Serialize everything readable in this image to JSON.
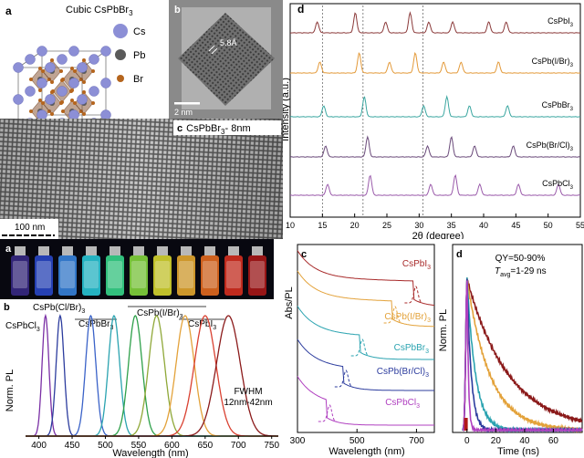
{
  "crystal": {
    "letter": "a",
    "title": "Cubic CsPbBr",
    "title_sub": "3",
    "legend": [
      {
        "label": "Cs",
        "color": "#8c8fd6"
      },
      {
        "label": "Pb",
        "color": "#5a5a5a"
      },
      {
        "label": "Br",
        "color": "#b5651d"
      }
    ]
  },
  "hrtem": {
    "letter": "b",
    "spacing": "5.8Å",
    "scale": "2 nm"
  },
  "tem": {
    "letter": "c",
    "title": "CsPbBr",
    "title_sub": "3",
    "title_tail": "- 8nm",
    "scale": "100 nm"
  },
  "photo": {
    "letter": "a"
  },
  "pl": {
    "letter": "b",
    "y_label": "Norm. PL",
    "x_label": "Wavelength (nm)",
    "fwhm_line1": "FWHM",
    "fwhm_line2": "12nm-42nm",
    "compositions": [
      {
        "label": "CsPbCl",
        "sub": "3"
      },
      {
        "label": "CsPb(Cl/Br)",
        "sub": "3"
      },
      {
        "label": "CsPbBr",
        "sub": "3"
      },
      {
        "label": "CsPb(I/Br)",
        "sub": "3"
      },
      {
        "label": "CsPbI",
        "sub": "3"
      }
    ],
    "x_ticks": [
      "400",
      "450",
      "500",
      "550",
      "600",
      "650",
      "700",
      "750"
    ],
    "chart_data": {
      "type": "line",
      "xlabel": "Wavelength (nm)",
      "ylabel": "Norm. PL",
      "xlim": [
        380,
        760
      ],
      "ylim": [
        0,
        1
      ],
      "series": [
        {
          "peak": 410,
          "fwhm": 12,
          "color": "#7a2fa5"
        },
        {
          "peak": 432,
          "fwhm": 14,
          "color": "#2c3c9e"
        },
        {
          "peak": 478,
          "fwhm": 18,
          "color": "#3a62c8"
        },
        {
          "peak": 513,
          "fwhm": 20,
          "color": "#2aa3b0"
        },
        {
          "peak": 545,
          "fwhm": 24,
          "color": "#2ea04a"
        },
        {
          "peak": 577,
          "fwhm": 28,
          "color": "#8fa838"
        },
        {
          "peak": 620,
          "fwhm": 32,
          "color": "#e3a23a"
        },
        {
          "peak": 650,
          "fwhm": 38,
          "color": "#d94030"
        },
        {
          "peak": 685,
          "fwhm": 42,
          "color": "#8b1a1a"
        }
      ]
    }
  },
  "xrd": {
    "letter": "d",
    "y_label": "Intensity (a.u.)",
    "x_label": "2θ (degree)",
    "x_ticks": [
      "10",
      "15",
      "20",
      "25",
      "30",
      "35",
      "40",
      "45",
      "50",
      "55"
    ],
    "chart_data": {
      "type": "line",
      "xlim": [
        10,
        55
      ],
      "series": [
        {
          "name": "CsPbI",
          "sub": "3",
          "color": "#8b3a3a",
          "peaks": [
            14.2,
            20.1,
            24.8,
            28.6,
            31.5,
            35.2,
            40.8,
            43.5
          ]
        },
        {
          "name": "CsPb(I/Br)",
          "sub": "3",
          "color": "#e39a3a",
          "peaks": [
            14.6,
            20.7,
            25.4,
            29.4,
            33.8,
            36.5,
            42.3
          ]
        },
        {
          "name": "CsPbBr",
          "sub": "3",
          "color": "#3aa6a0",
          "peaks": [
            15.2,
            21.5,
            30.7,
            34.3,
            37.8,
            43.7
          ]
        },
        {
          "name": "CsPb(Br/Cl)",
          "sub": "3",
          "color": "#6a4a7a",
          "peaks": [
            15.5,
            22.0,
            31.3,
            35.0,
            38.6,
            44.6
          ]
        },
        {
          "name": "CsPbCl",
          "sub": "3",
          "color": "#9a5aaa",
          "peaks": [
            15.8,
            22.4,
            31.8,
            35.6,
            39.4,
            45.4,
            51.6
          ]
        }
      ]
    }
  },
  "abs": {
    "letter": "c",
    "y_label": "Abs/PL",
    "x_label": "Wavelength (nm)",
    "x_ticks": [
      "300",
      "500",
      "700"
    ],
    "labels": [
      {
        "name": "CsPbI",
        "sub": "3",
        "color": "#a82a2a"
      },
      {
        "name": "CsPb(I/Br)",
        "sub": "3",
        "color": "#e3a23a"
      },
      {
        "name": "CsPbBr",
        "sub": "3",
        "color": "#2aa3b0"
      },
      {
        "name": "CsPb(Br/Cl)",
        "sub": "3",
        "color": "#2c3c9e"
      },
      {
        "name": "CsPbCl",
        "sub": "3",
        "color": "#b040c0"
      }
    ]
  },
  "decay": {
    "letter": "d",
    "y_label": "Norm. PL",
    "x_label": "Time (ns)",
    "x_ticks": [
      "0",
      "20",
      "40",
      "60"
    ],
    "qy": "QY=50-90%",
    "tau": "T",
    "tau_sub": "avg",
    "tau_tail": "=1-29 ns",
    "chart_data": {
      "type": "line",
      "xlim": [
        -10,
        80
      ],
      "series": [
        {
          "tau": 29,
          "color": "#8b1a1a"
        },
        {
          "tau": 16,
          "color": "#e3a23a"
        },
        {
          "tau": 6,
          "color": "#2aa3b0"
        },
        {
          "tau": 3,
          "color": "#2c3c9e"
        },
        {
          "tau": 1,
          "color": "#b040c0"
        }
      ]
    }
  }
}
